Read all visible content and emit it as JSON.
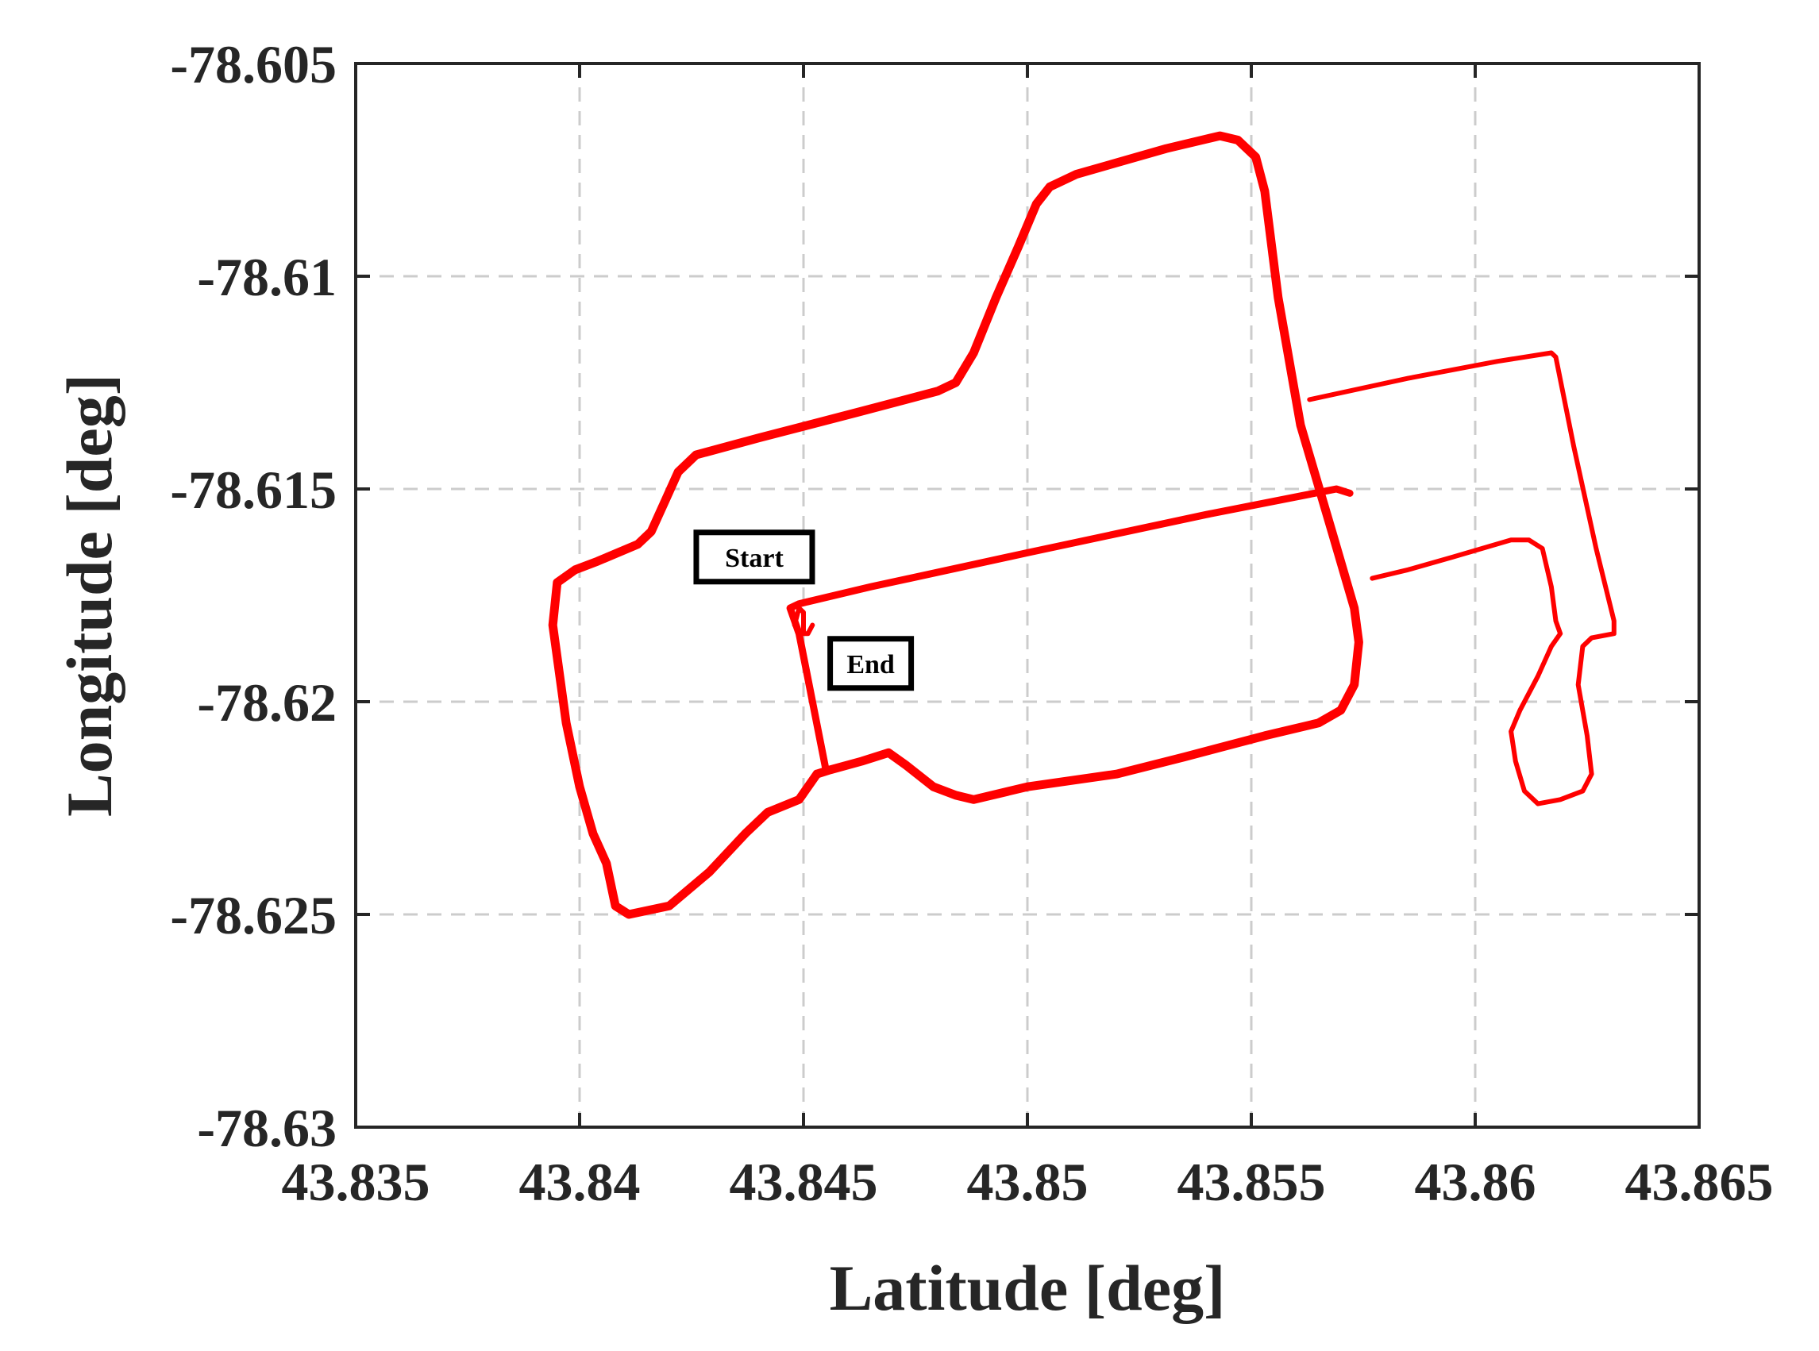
{
  "chart_data": {
    "type": "line",
    "xlabel": "Latitude [deg]",
    "ylabel": "Longitude [deg]",
    "xlim": [
      43.835,
      43.865
    ],
    "ylim": [
      -78.63,
      -78.605
    ],
    "xticks": [
      43.835,
      43.84,
      43.845,
      43.85,
      43.855,
      43.86,
      43.865
    ],
    "xtick_labels": [
      "43.835",
      "43.84",
      "43.845",
      "43.85",
      "43.855",
      "43.86",
      "43.865"
    ],
    "yticks": [
      -78.605,
      -78.61,
      -78.615,
      -78.62,
      -78.625,
      -78.63
    ],
    "ytick_labels": [
      "-78.605",
      "-78.61",
      "-78.615",
      "-78.62",
      "-78.625",
      "-78.63"
    ],
    "grid": true,
    "grid_style": "dashed",
    "line_color": "#ff0000",
    "axis_color": "#262626",
    "grid_color": "#cccccc",
    "annotations": [
      {
        "text": "Start",
        "x": 43.8439,
        "y": -78.6166
      },
      {
        "text": "End",
        "x": 43.8465,
        "y": -78.6191
      }
    ],
    "series": [
      {
        "segments": [
          {
            "width": "thick",
            "points": [
              [
                43.8453,
                -78.6217
              ],
              [
                43.8449,
                -78.6223
              ],
              [
                43.8442,
                -78.6226
              ],
              [
                43.8437,
                -78.6231
              ],
              [
                43.8429,
                -78.624
              ],
              [
                43.842,
                -78.6248
              ],
              [
                43.8411,
                -78.625
              ],
              [
                43.8408,
                -78.6248
              ],
              [
                43.8406,
                -78.6238
              ],
              [
                43.8403,
                -78.6231
              ],
              [
                43.84,
                -78.622
              ],
              [
                43.8397,
                -78.6205
              ],
              [
                43.8394,
                -78.6182
              ],
              [
                43.8395,
                -78.6172
              ],
              [
                43.8399,
                -78.6169
              ],
              [
                43.8404,
                -78.6167
              ],
              [
                43.8413,
                -78.6163
              ],
              [
                43.8416,
                -78.616
              ],
              [
                43.8419,
                -78.6153
              ],
              [
                43.8422,
                -78.6146
              ],
              [
                43.8426,
                -78.6142
              ],
              [
                43.844,
                -78.6138
              ],
              [
                43.8462,
                -78.6132
              ],
              [
                43.848,
                -78.6127
              ],
              [
                43.8484,
                -78.6125
              ],
              [
                43.8488,
                -78.6118
              ],
              [
                43.8493,
                -78.6105
              ],
              [
                43.8498,
                -78.6093
              ],
              [
                43.8502,
                -78.6083
              ],
              [
                43.8505,
                -78.6079
              ],
              [
                43.8511,
                -78.6076
              ],
              [
                43.8531,
                -78.607
              ],
              [
                43.8543,
                -78.6067
              ],
              [
                43.8547,
                -78.6068
              ],
              [
                43.8551,
                -78.6072
              ],
              [
                43.8553,
                -78.608
              ],
              [
                43.8556,
                -78.6105
              ],
              [
                43.8561,
                -78.6135
              ],
              [
                43.8568,
                -78.616
              ],
              [
                43.8573,
                -78.6178
              ],
              [
                43.8574,
                -78.6186
              ],
              [
                43.8573,
                -78.6196
              ],
              [
                43.857,
                -78.6202
              ],
              [
                43.8565,
                -78.6205
              ],
              [
                43.8553,
                -78.6208
              ],
              [
                43.8535,
                -78.6213
              ],
              [
                43.852,
                -78.6217
              ],
              [
                43.85,
                -78.622
              ],
              [
                43.8488,
                -78.6223
              ],
              [
                43.8484,
                -78.6222
              ],
              [
                43.8479,
                -78.622
              ],
              [
                43.8473,
                -78.6215
              ],
              [
                43.8469,
                -78.6212
              ],
              [
                43.8463,
                -78.6214
              ],
              [
                43.8456,
                -78.6216
              ],
              [
                43.8453,
                -78.6217
              ]
            ]
          },
          {
            "width": "medium",
            "points": [
              [
                43.8455,
                -78.6216
              ],
              [
                43.8452,
                -78.62
              ],
              [
                43.8449,
                -78.6184
              ],
              [
                43.8447,
                -78.6178
              ],
              [
                43.8449,
                -78.6177
              ],
              [
                43.8465,
                -78.6173
              ],
              [
                43.85,
                -78.6165
              ],
              [
                43.854,
                -78.6156
              ],
              [
                43.8569,
                -78.615
              ],
              [
                43.8572,
                -78.6151
              ]
            ]
          },
          {
            "width": "thin",
            "points": [
              [
                43.8448,
                -78.6182
              ],
              [
                43.8449,
                -78.6178
              ],
              [
                43.845,
                -78.6179
              ],
              [
                43.845,
                -78.6184
              ],
              [
                43.8451,
                -78.6184
              ],
              [
                43.8452,
                -78.6182
              ]
            ]
          },
          {
            "width": "thin",
            "points": [
              [
                43.8563,
                -78.6129
              ],
              [
                43.8585,
                -78.6124
              ],
              [
                43.8605,
                -78.612
              ],
              [
                43.8617,
                -78.6118
              ],
              [
                43.8618,
                -78.6119
              ],
              [
                43.8622,
                -78.614
              ],
              [
                43.8627,
                -78.6164
              ],
              [
                43.8631,
                -78.6181
              ],
              [
                43.8631,
                -78.6184
              ],
              [
                43.8626,
                -78.6185
              ],
              [
                43.8624,
                -78.6187
              ],
              [
                43.8623,
                -78.6196
              ],
              [
                43.8625,
                -78.6208
              ],
              [
                43.8626,
                -78.6217
              ],
              [
                43.8624,
                -78.6221
              ],
              [
                43.8619,
                -78.6223
              ],
              [
                43.8614,
                -78.6224
              ],
              [
                43.8611,
                -78.6221
              ],
              [
                43.8609,
                -78.6214
              ],
              [
                43.8608,
                -78.6207
              ],
              [
                43.861,
                -78.6202
              ],
              [
                43.8614,
                -78.6194
              ],
              [
                43.8617,
                -78.6187
              ],
              [
                43.8619,
                -78.6184
              ],
              [
                43.8618,
                -78.6181
              ],
              [
                43.8617,
                -78.6173
              ],
              [
                43.8615,
                -78.6164
              ],
              [
                43.8612,
                -78.6162
              ],
              [
                43.8608,
                -78.6162
              ],
              [
                43.8595,
                -78.6166
              ],
              [
                43.8585,
                -78.6169
              ],
              [
                43.8577,
                -78.6171
              ]
            ]
          }
        ]
      }
    ]
  }
}
